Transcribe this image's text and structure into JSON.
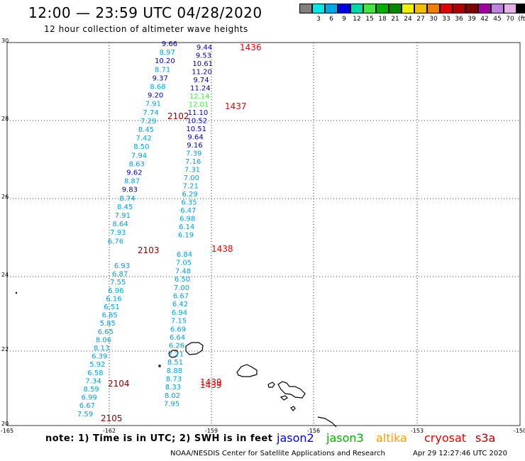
{
  "title": "12:00 — 23:59 UTC 04/28/2020",
  "subtitle": "12 hour collection of altimeter wave heights",
  "scale": {
    "labels": [
      "",
      "3",
      "6",
      "9",
      "12",
      "15",
      "18",
      "21",
      "24",
      "27",
      "30",
      "33",
      "36",
      "39",
      "42",
      "45",
      "70",
      "(ft)"
    ],
    "colors": [
      "#808080",
      "#00e8e8",
      "#00a8e8",
      "#0000e8",
      "#00d8a8",
      "#40e840",
      "#00b000",
      "#008800",
      "#f0f000",
      "#f0c000",
      "#f08000",
      "#e00000",
      "#b00000",
      "#800000",
      "#a000a0",
      "#c080e0",
      "#e8b0e8",
      "#000000"
    ]
  },
  "axes": {
    "lat_labels": [
      "30",
      "28",
      "26",
      "24",
      "22",
      "20"
    ],
    "lon_labels": [
      "-165",
      "-162",
      "-159",
      "-156",
      "-153",
      "-150"
    ]
  },
  "passes": [
    {
      "track": "2102",
      "color": "#800000",
      "readings": [
        {
          "v": "9.66",
          "c": "#0000b0"
        },
        {
          "v": "8.97",
          "c": "#00a0e0"
        },
        {
          "v": "10.20",
          "c": "#0000b0"
        },
        {
          "v": "8.71",
          "c": "#00a0e0"
        },
        {
          "v": "9.37",
          "c": "#0000b0"
        },
        {
          "v": "8.68",
          "c": "#00a0e0"
        },
        {
          "v": "9.20",
          "c": "#0000b0"
        },
        {
          "v": "7.91",
          "c": "#00a0e0"
        },
        {
          "v": "7.74",
          "c": "#00a0e0"
        },
        {
          "v": "7.29",
          "c": "#00a0e0"
        },
        {
          "v": "8.45",
          "c": "#00a0e0"
        },
        {
          "v": "7.42",
          "c": "#00a0e0"
        },
        {
          "v": "8.50",
          "c": "#00a0e0"
        },
        {
          "v": "7.94",
          "c": "#00a0e0"
        },
        {
          "v": "8.63",
          "c": "#00a0e0"
        },
        {
          "v": "9.62",
          "c": "#0000b0"
        },
        {
          "v": "8.87",
          "c": "#00a0e0"
        },
        {
          "v": "9.83",
          "c": "#0000b0"
        },
        {
          "v": "8.74",
          "c": "#00a0e0"
        },
        {
          "v": "8.45",
          "c": "#00a0e0"
        },
        {
          "v": "7.91",
          "c": "#00a0e0"
        },
        {
          "v": "8.64",
          "c": "#00a0e0"
        },
        {
          "v": "7.93",
          "c": "#00a0e0"
        },
        {
          "v": "6.76",
          "c": "#00a0e0"
        }
      ]
    },
    {
      "track": "2103",
      "color": "#800000",
      "readings": [
        {
          "v": "6.93",
          "c": "#00a0e0"
        },
        {
          "v": "6.87",
          "c": "#00a0e0"
        },
        {
          "v": "7.55",
          "c": "#00a0e0"
        },
        {
          "v": "6.96",
          "c": "#00a0e0"
        },
        {
          "v": "6.16",
          "c": "#00a0e0"
        },
        {
          "v": "6.51",
          "c": "#00a0e0"
        },
        {
          "v": "6.85",
          "c": "#00a0e0"
        },
        {
          "v": "5.85",
          "c": "#00a0e0"
        },
        {
          "v": "6.65",
          "c": "#00a0e0"
        },
        {
          "v": "8.06",
          "c": "#00a0e0"
        },
        {
          "v": "8.13",
          "c": "#00a0e0"
        },
        {
          "v": "6.39",
          "c": "#00a0e0"
        },
        {
          "v": "5.92",
          "c": "#00a0e0"
        },
        {
          "v": "6.58",
          "c": "#00a0e0"
        },
        {
          "v": "7.34",
          "c": "#00a0e0"
        },
        {
          "v": "8.59",
          "c": "#00a0e0"
        },
        {
          "v": "6.99",
          "c": "#00a0e0"
        },
        {
          "v": "6.67",
          "c": "#00a0e0"
        },
        {
          "v": "7.59",
          "c": "#00a0e0"
        }
      ]
    },
    {
      "track": "1436",
      "color": "#e00000",
      "readings": [
        {
          "v": "9.44",
          "c": "#0000b0"
        },
        {
          "v": "9.53",
          "c": "#0000b0"
        },
        {
          "v": "10.61",
          "c": "#0000b0"
        },
        {
          "v": "11.20",
          "c": "#0000b0"
        },
        {
          "v": "9.74",
          "c": "#0000b0"
        },
        {
          "v": "11.24",
          "c": "#0000b0"
        },
        {
          "v": "12.14",
          "c": "#40e840"
        },
        {
          "v": "12.01",
          "c": "#40e840"
        },
        {
          "v": "11.10",
          "c": "#0000b0"
        },
        {
          "v": "10.52",
          "c": "#0000b0"
        },
        {
          "v": "10.51",
          "c": "#0000b0"
        },
        {
          "v": "9.64",
          "c": "#0000b0"
        },
        {
          "v": "9.16",
          "c": "#0000b0"
        },
        {
          "v": "7.39",
          "c": "#00a0e0"
        },
        {
          "v": "7.16",
          "c": "#00a0e0"
        },
        {
          "v": "7.31",
          "c": "#00a0e0"
        },
        {
          "v": "7.00",
          "c": "#00a0e0"
        },
        {
          "v": "7.21",
          "c": "#00a0e0"
        },
        {
          "v": "6.29",
          "c": "#00a0e0"
        },
        {
          "v": "6.35",
          "c": "#00a0e0"
        },
        {
          "v": "6.47",
          "c": "#00a0e0"
        },
        {
          "v": "6.98",
          "c": "#00a0e0"
        },
        {
          "v": "6.14",
          "c": "#00a0e0"
        },
        {
          "v": "6.19",
          "c": "#00a0e0"
        }
      ]
    },
    {
      "track": "1438",
      "color": "#e00000",
      "readings": [
        {
          "v": "6.84",
          "c": "#00a0e0"
        },
        {
          "v": "7.05",
          "c": "#00a0e0"
        },
        {
          "v": "7.48",
          "c": "#00a0e0"
        },
        {
          "v": "6.50",
          "c": "#00a0e0"
        },
        {
          "v": "7.00",
          "c": "#00a0e0"
        },
        {
          "v": "6.67",
          "c": "#00a0e0"
        },
        {
          "v": "6.42",
          "c": "#00a0e0"
        },
        {
          "v": "6.94",
          "c": "#00a0e0"
        },
        {
          "v": "7.15",
          "c": "#00a0e0"
        },
        {
          "v": "6.69",
          "c": "#00a0e0"
        },
        {
          "v": "6.64",
          "c": "#00a0e0"
        },
        {
          "v": "6.26",
          "c": "#00a0e0"
        },
        {
          "v": "7.21",
          "c": "#00a0e0"
        },
        {
          "v": "8.51",
          "c": "#00a0e0"
        },
        {
          "v": "8.88",
          "c": "#00a0e0"
        },
        {
          "v": "8.73",
          "c": "#00a0e0"
        },
        {
          "v": "8.33",
          "c": "#00a0e0"
        },
        {
          "v": "8.02",
          "c": "#00a0e0"
        },
        {
          "v": "7.95",
          "c": "#00a0e0"
        }
      ]
    }
  ],
  "track_labels": [
    {
      "text": "1436",
      "color": "#e00000"
    },
    {
      "text": "1437",
      "color": "#e00000"
    },
    {
      "text": "2102",
      "color": "#800000"
    },
    {
      "text": "1438",
      "color": "#e00000"
    },
    {
      "text": "2103",
      "color": "#800000"
    },
    {
      "text": "1439",
      "color": "#e00000"
    },
    {
      "text": "1439",
      "color": "#e00000"
    },
    {
      "text": "2104",
      "color": "#800000"
    },
    {
      "text": "2105",
      "color": "#800000"
    }
  ],
  "note": "note: 1) Time is in UTC; 2) SWH is in feet",
  "satellites": [
    {
      "name": "jason2",
      "color": "#0000e0"
    },
    {
      "name": "jason3",
      "color": "#00b000"
    },
    {
      "name": "altika",
      "color": "#f0a000"
    },
    {
      "name": "cryosat",
      "color": "#e00000"
    },
    {
      "name": "s3a",
      "color": "#b00000"
    }
  ],
  "footer_left": "NOAA/NESDIS Center for Satellite Applications and Research",
  "footer_right": "Apr 29 12:27:46 UTC 2020"
}
